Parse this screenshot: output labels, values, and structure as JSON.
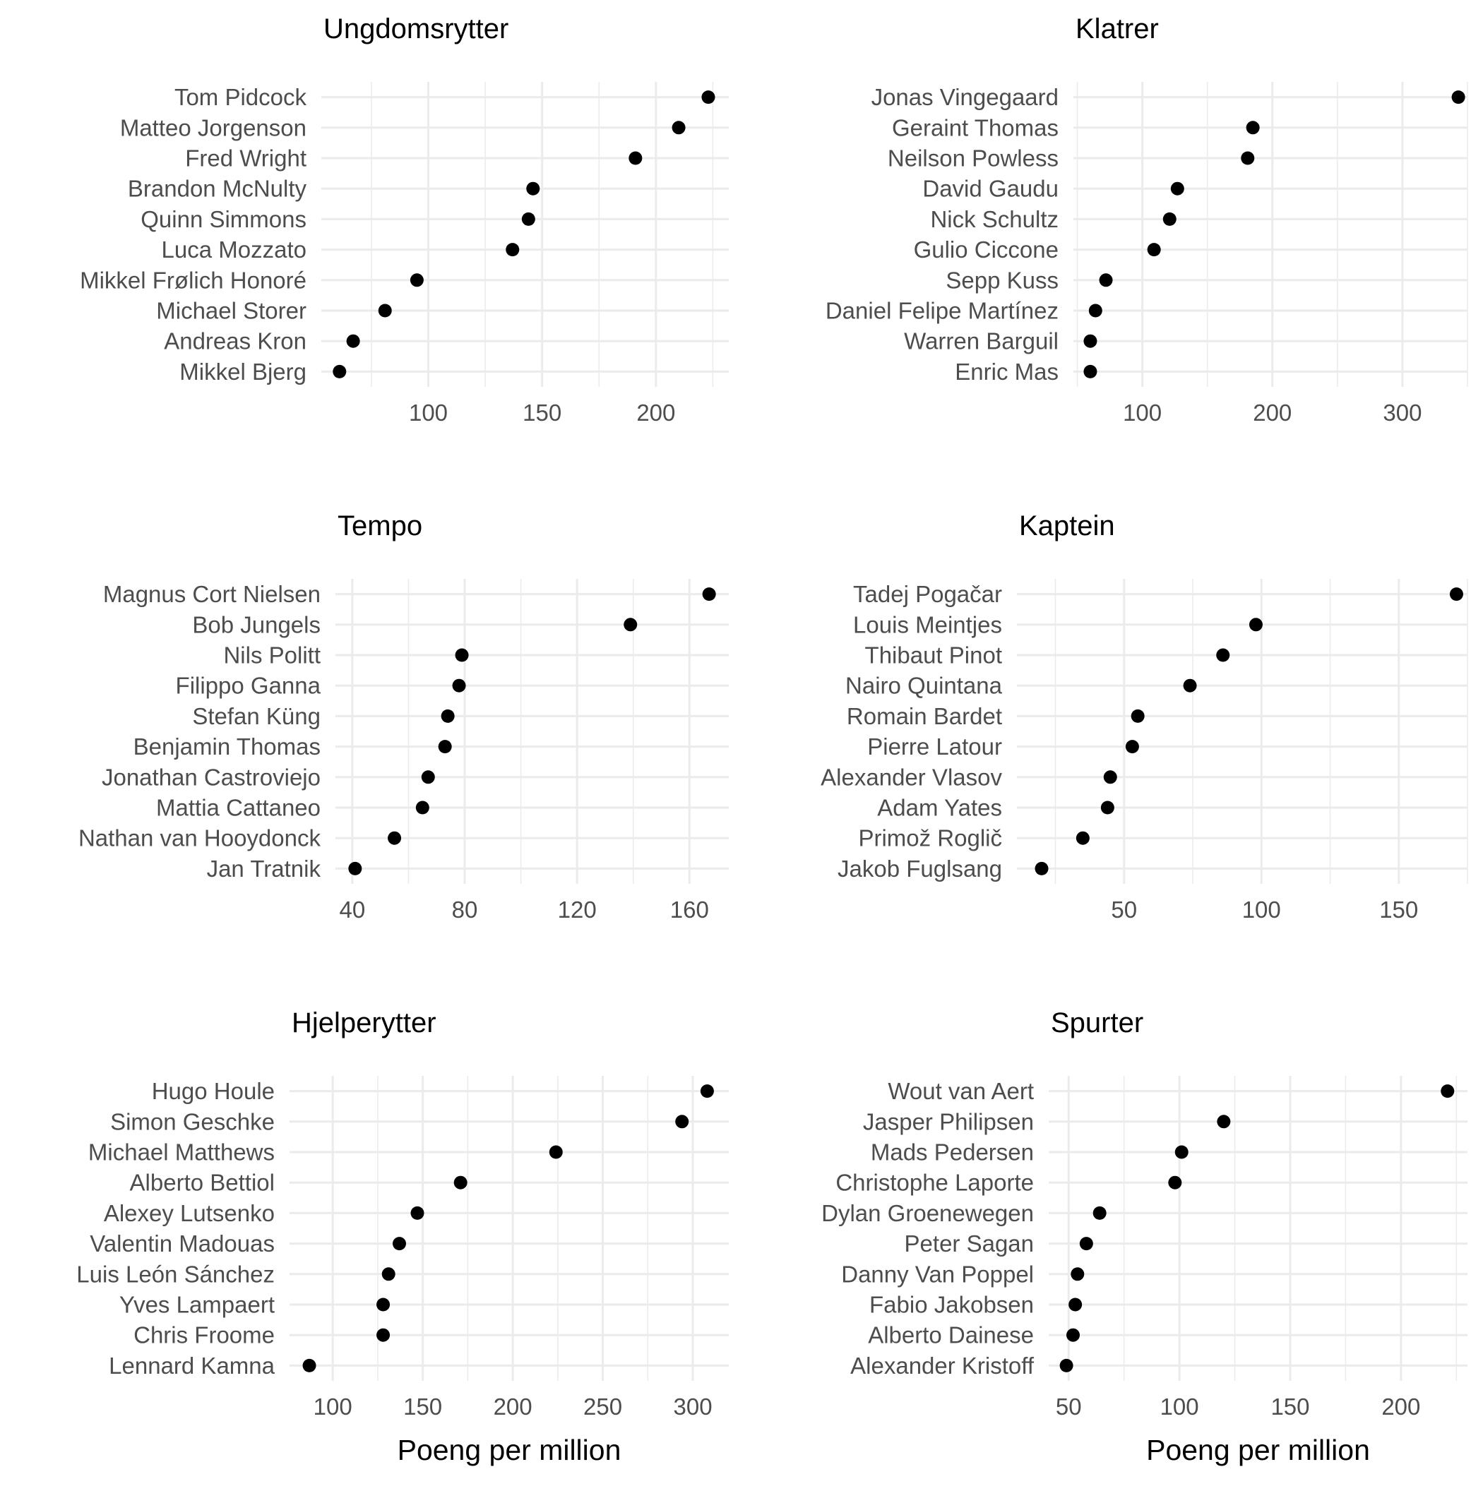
{
  "chart_data": [
    {
      "type": "scatter",
      "title": "Ungdomsrytter",
      "xlabel": "",
      "xlim": [
        53,
        232
      ],
      "xticks": [
        100,
        150,
        200
      ],
      "categories": [
        "Tom Pidcock",
        "Matteo Jorgenson",
        "Fred Wright",
        "Brandon McNulty",
        "Quinn Simmons",
        "Luca Mozzato",
        "Mikkel Frølich Honoré",
        "Michael Storer",
        "Andreas Kron",
        "Mikkel Bjerg"
      ],
      "values": [
        223,
        210,
        191,
        146,
        144,
        137,
        95,
        81,
        67,
        61
      ]
    },
    {
      "type": "scatter",
      "title": "Klatrer",
      "xlabel": "",
      "xlim": [
        47,
        350
      ],
      "xticks": [
        100,
        200,
        300
      ],
      "categories": [
        "Jonas Vingegaard",
        "Geraint Thomas",
        "Neilson Powless",
        "David Gaudu",
        "Nick Schultz",
        "Gulio Ciccone",
        "Sepp Kuss",
        "Daniel Felipe Martínez",
        "Warren Barguil",
        "Enric Mas"
      ],
      "values": [
        343,
        185,
        181,
        127,
        121,
        109,
        72,
        64,
        60,
        60
      ]
    },
    {
      "type": "scatter",
      "title": "Tempo",
      "xlabel": "",
      "xlim": [
        34,
        174
      ],
      "xticks": [
        40,
        80,
        120,
        160
      ],
      "categories": [
        "Magnus Cort Nielsen",
        "Bob Jungels",
        "Nils Politt",
        "Filippo Ganna",
        "Stefan Küng",
        "Benjamin Thomas",
        "Jonathan Castroviejo",
        "Mattia Cattaneo",
        "Nathan van Hooydonck",
        "Jan Tratnik"
      ],
      "values": [
        167,
        139,
        79,
        78,
        74,
        73,
        67,
        65,
        55,
        41
      ]
    },
    {
      "type": "scatter",
      "title": "Kaptein",
      "xlabel": "",
      "xlim": [
        11,
        175
      ],
      "xticks": [
        50,
        100,
        150
      ],
      "categories": [
        "Tadej Pogačar",
        "Louis Meintjes",
        "Thibaut Pinot",
        "Nairo Quintana",
        "Romain Bardet",
        "Pierre Latour",
        "Alexander Vlasov",
        "Adam Yates",
        "Primož Roglič",
        "Jakob Fuglsang"
      ],
      "values": [
        171,
        98,
        86,
        74,
        55,
        53,
        45,
        44,
        35,
        20
      ]
    },
    {
      "type": "scatter",
      "title": "Hjelperytter",
      "xlabel": "Poeng per million",
      "xlim": [
        76,
        320
      ],
      "xticks": [
        100,
        150,
        200,
        250,
        300
      ],
      "categories": [
        "Hugo Houle",
        "Simon Geschke",
        "Michael Matthews",
        "Alberto Bettiol",
        "Alexey Lutsenko",
        "Valentin Madouas",
        "Luis León Sánchez",
        "Yves Lampaert",
        "Chris Froome",
        "Lennard Kamna"
      ],
      "values": [
        308,
        294,
        224,
        171,
        147,
        137,
        131,
        128,
        128,
        87
      ]
    },
    {
      "type": "scatter",
      "title": "Spurter",
      "xlabel": "Poeng per million",
      "xlim": [
        41,
        230
      ],
      "xticks": [
        50,
        100,
        150,
        200
      ],
      "categories": [
        "Wout van Aert",
        "Jasper Philipsen",
        "Mads Pedersen",
        "Christophe Laporte",
        "Dylan Groenewegen",
        "Peter Sagan",
        "Danny Van Poppel",
        "Fabio Jakobsen",
        "Alberto Dainese",
        "Alexander Kristoff"
      ],
      "values": [
        221,
        120,
        101,
        98,
        64,
        58,
        54,
        53,
        52,
        49
      ]
    }
  ]
}
